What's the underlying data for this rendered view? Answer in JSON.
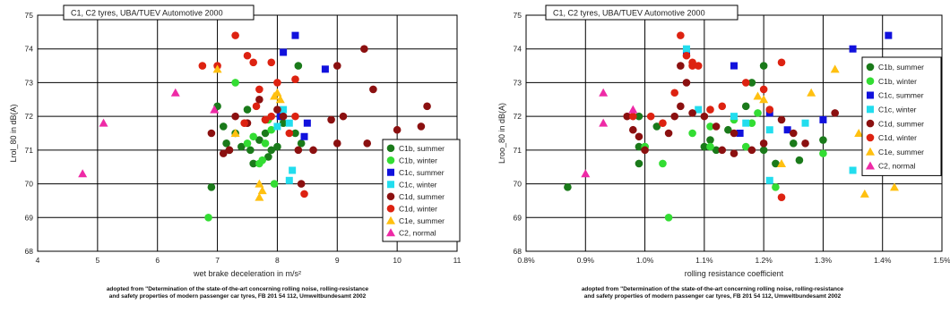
{
  "caption": {
    "line1": "adopted from \"Determination of the state-of-the-art concerning rolling noise, rolling-resistance",
    "line2": "and safety properties of modern passenger car tyres, FB 201 54 112, Umweltbundesamt 2002"
  },
  "colors": {
    "C1b, summer": "#1a7a1a",
    "C1b, winter": "#33dd33",
    "C1c, summer": "#1111dd",
    "C1c, winter": "#22ddee",
    "C1d, summer": "#8b1010",
    "C1d, winter": "#dd2211",
    "C1e, summer": "#ffc010",
    "C2, normal": "#ee2aa6"
  },
  "chart_data": [
    {
      "type": "scatter",
      "title": "C1, C2 tyres, UBA/TUEV Automotive 2000",
      "xlabel": "wet brake deceleration in m/s²",
      "ylabel": "Lrol_80 in dB(A)",
      "xlim": [
        4,
        11
      ],
      "ylim": [
        68,
        75
      ],
      "xticks": [
        "4",
        "5",
        "6",
        "7",
        "8",
        "9",
        "10",
        "11"
      ],
      "yticks": [
        "68",
        "69",
        "70",
        "71",
        "72",
        "73",
        "74",
        "75"
      ],
      "grid": true,
      "legend_position": "bottom-right",
      "series": [
        {
          "name": "C1b, summer",
          "marker": "circle",
          "points": [
            [
              6.9,
              69.9
            ],
            [
              7.0,
              72.3
            ],
            [
              7.1,
              71.7
            ],
            [
              7.15,
              71.2
            ],
            [
              7.2,
              71.0
            ],
            [
              7.3,
              71.5
            ],
            [
              7.4,
              71.1
            ],
            [
              7.5,
              72.2
            ],
            [
              7.55,
              71.0
            ],
            [
              7.6,
              70.6
            ],
            [
              7.7,
              71.3
            ],
            [
              7.8,
              71.5
            ],
            [
              7.85,
              70.8
            ],
            [
              7.9,
              71.0
            ],
            [
              8.0,
              71.1
            ],
            [
              8.05,
              72.0
            ],
            [
              8.1,
              71.8
            ],
            [
              8.3,
              71.5
            ],
            [
              8.35,
              73.5
            ],
            [
              8.4,
              71.2
            ]
          ]
        },
        {
          "name": "C1b, winter",
          "marker": "circle",
          "points": [
            [
              6.85,
              69.0
            ],
            [
              7.3,
              73.0
            ],
            [
              7.5,
              71.2
            ],
            [
              7.6,
              71.4
            ],
            [
              7.7,
              70.6
            ],
            [
              7.75,
              70.7
            ],
            [
              7.8,
              71.2
            ],
            [
              7.85,
              71.9
            ],
            [
              7.9,
              71.6
            ],
            [
              7.95,
              70.0
            ]
          ]
        },
        {
          "name": "C1c, summer",
          "marker": "square",
          "points": [
            [
              8.1,
              73.9
            ],
            [
              8.3,
              74.4
            ],
            [
              8.45,
              71.4
            ],
            [
              8.5,
              71.8
            ],
            [
              8.8,
              73.4
            ],
            [
              8.05,
              72.0
            ]
          ]
        },
        {
          "name": "C1c, winter",
          "marker": "square",
          "points": [
            [
              8.0,
              71.7
            ],
            [
              8.1,
              72.2
            ],
            [
              8.2,
              71.8
            ],
            [
              8.25,
              70.4
            ],
            [
              8.2,
              70.1
            ]
          ]
        },
        {
          "name": "C1d, summer",
          "marker": "circle",
          "points": [
            [
              6.9,
              71.5
            ],
            [
              7.1,
              70.9
            ],
            [
              7.2,
              71.0
            ],
            [
              7.3,
              72.0
            ],
            [
              7.5,
              71.8
            ],
            [
              7.7,
              72.5
            ],
            [
              7.8,
              71.9
            ],
            [
              8.0,
              72.2
            ],
            [
              8.1,
              72.0
            ],
            [
              8.35,
              71.0
            ],
            [
              8.6,
              71.0
            ],
            [
              8.9,
              71.9
            ],
            [
              9.0,
              73.5
            ],
            [
              9.1,
              72.0
            ],
            [
              9.5,
              71.2
            ],
            [
              9.6,
              72.8
            ],
            [
              9.45,
              74.0
            ],
            [
              10.0,
              71.6
            ],
            [
              10.4,
              71.7
            ],
            [
              10.5,
              72.3
            ],
            [
              8.4,
              70.0
            ],
            [
              9.0,
              71.2
            ]
          ]
        },
        {
          "name": "C1d, winter",
          "marker": "circle",
          "points": [
            [
              6.75,
              73.5
            ],
            [
              7.0,
              73.5
            ],
            [
              7.3,
              74.4
            ],
            [
              7.45,
              71.8
            ],
            [
              7.5,
              73.8
            ],
            [
              7.6,
              73.6
            ],
            [
              7.7,
              72.8
            ],
            [
              7.8,
              71.9
            ],
            [
              7.9,
              73.6
            ],
            [
              8.0,
              73.0
            ],
            [
              8.3,
              73.1
            ],
            [
              8.45,
              69.7
            ],
            [
              8.2,
              71.5
            ],
            [
              8.3,
              72.0
            ],
            [
              7.65,
              72.3
            ],
            [
              7.9,
              72.0
            ]
          ]
        },
        {
          "name": "C1e, summer",
          "marker": "triangle",
          "points": [
            [
              7.0,
              73.4
            ],
            [
              7.3,
              71.5
            ],
            [
              7.7,
              70.0
            ],
            [
              7.75,
              69.8
            ],
            [
              7.7,
              69.6
            ],
            [
              7.95,
              72.6
            ],
            [
              8.0,
              72.7
            ],
            [
              8.05,
              72.5
            ]
          ]
        },
        {
          "name": "C2, normal",
          "marker": "triangle",
          "points": [
            [
              4.75,
              70.3
            ],
            [
              5.1,
              71.8
            ],
            [
              6.3,
              72.7
            ],
            [
              6.95,
              72.2
            ]
          ]
        }
      ]
    },
    {
      "type": "scatter",
      "title": "C1, C2 tyres, UBA/TUEV Automotive 2000",
      "xlabel": "rolling resistance coefficient",
      "ylabel": "Lroo_80 in dB(A)",
      "xlim": [
        0.8,
        1.5
      ],
      "ylim": [
        68,
        75
      ],
      "xticks": [
        "0.8%",
        "0.9%",
        "1.0%",
        "1.1%",
        "1.2%",
        "1.3%",
        "1.4%",
        "1.5%"
      ],
      "yticks": [
        "68",
        "69",
        "70",
        "71",
        "72",
        "73",
        "74",
        "75"
      ],
      "grid": true,
      "legend_position": "right",
      "series": [
        {
          "name": "C1b, summer",
          "marker": "circle",
          "points": [
            [
              0.87,
              69.9
            ],
            [
              0.99,
              71.1
            ],
            [
              0.99,
              70.6
            ],
            [
              0.99,
              72.0
            ],
            [
              1.0,
              71.1
            ],
            [
              1.1,
              71.1
            ],
            [
              1.11,
              71.3
            ],
            [
              1.12,
              71.0
            ],
            [
              1.14,
              71.6
            ],
            [
              1.17,
              72.3
            ],
            [
              1.18,
              73.0
            ],
            [
              1.2,
              73.5
            ],
            [
              1.2,
              71.0
            ],
            [
              1.22,
              70.6
            ],
            [
              1.25,
              71.2
            ],
            [
              1.26,
              70.7
            ],
            [
              1.3,
              71.3
            ],
            [
              1.02,
              71.7
            ]
          ]
        },
        {
          "name": "C1b, winter",
          "marker": "circle",
          "points": [
            [
              1.0,
              71.1
            ],
            [
              1.03,
              70.6
            ],
            [
              1.04,
              69.0
            ],
            [
              1.11,
              71.1
            ],
            [
              1.15,
              71.9
            ],
            [
              1.17,
              71.1
            ],
            [
              1.18,
              71.8
            ],
            [
              1.19,
              72.1
            ],
            [
              1.22,
              69.9
            ],
            [
              1.3,
              70.9
            ],
            [
              1.11,
              71.7
            ],
            [
              1.08,
              71.5
            ]
          ]
        },
        {
          "name": "C1c, summer",
          "marker": "square",
          "points": [
            [
              1.07,
              73.9
            ],
            [
              1.15,
              73.5
            ],
            [
              1.21,
              72.1
            ],
            [
              1.24,
              71.6
            ],
            [
              1.3,
              71.9
            ],
            [
              1.35,
              74.0
            ],
            [
              1.41,
              74.4
            ],
            [
              1.16,
              71.5
            ]
          ]
        },
        {
          "name": "C1c, winter",
          "marker": "square",
          "points": [
            [
              1.07,
              74.0
            ],
            [
              1.09,
              72.2
            ],
            [
              1.15,
              72.0
            ],
            [
              1.21,
              71.6
            ],
            [
              1.21,
              70.1
            ],
            [
              1.27,
              71.8
            ],
            [
              1.35,
              70.4
            ],
            [
              1.17,
              71.8
            ]
          ]
        },
        {
          "name": "C1d, summer",
          "marker": "circle",
          "points": [
            [
              0.97,
              72.0
            ],
            [
              0.98,
              71.6
            ],
            [
              0.99,
              71.4
            ],
            [
              1.0,
              71.0
            ],
            [
              1.04,
              71.5
            ],
            [
              1.05,
              72.0
            ],
            [
              1.06,
              72.3
            ],
            [
              1.08,
              72.1
            ],
            [
              1.1,
              72.0
            ],
            [
              1.12,
              71.7
            ],
            [
              1.13,
              71.0
            ],
            [
              1.15,
              71.5
            ],
            [
              1.15,
              70.9
            ],
            [
              1.18,
              71.0
            ],
            [
              1.2,
              71.2
            ],
            [
              1.23,
              71.9
            ],
            [
              1.25,
              71.5
            ],
            [
              1.27,
              71.2
            ],
            [
              1.32,
              72.1
            ],
            [
              1.4,
              72.8
            ],
            [
              1.06,
              73.5
            ],
            [
              1.07,
              73.0
            ]
          ]
        },
        {
          "name": "C1d, winter",
          "marker": "circle",
          "points": [
            [
              0.98,
              72.0
            ],
            [
              1.01,
              72.0
            ],
            [
              1.03,
              71.8
            ],
            [
              1.05,
              72.7
            ],
            [
              1.06,
              74.4
            ],
            [
              1.08,
              73.6
            ],
            [
              1.08,
              73.5
            ],
            [
              1.09,
              73.5
            ],
            [
              1.11,
              72.2
            ],
            [
              1.13,
              72.3
            ],
            [
              1.17,
              73.0
            ],
            [
              1.2,
              72.8
            ],
            [
              1.21,
              72.2
            ],
            [
              1.23,
              69.6
            ],
            [
              1.23,
              73.6
            ],
            [
              1.4,
              71.5
            ],
            [
              1.07,
              73.8
            ]
          ]
        },
        {
          "name": "C1e, summer",
          "marker": "triangle",
          "points": [
            [
              1.19,
              72.6
            ],
            [
              1.2,
              72.5
            ],
            [
              1.23,
              70.6
            ],
            [
              1.28,
              72.7
            ],
            [
              1.32,
              73.4
            ],
            [
              1.37,
              69.7
            ],
            [
              1.36,
              71.5
            ],
            [
              1.42,
              69.9
            ]
          ]
        },
        {
          "name": "C2, normal",
          "marker": "triangle",
          "points": [
            [
              0.9,
              70.3
            ],
            [
              0.93,
              72.7
            ],
            [
              0.93,
              71.8
            ],
            [
              0.98,
              72.2
            ]
          ]
        }
      ]
    }
  ]
}
